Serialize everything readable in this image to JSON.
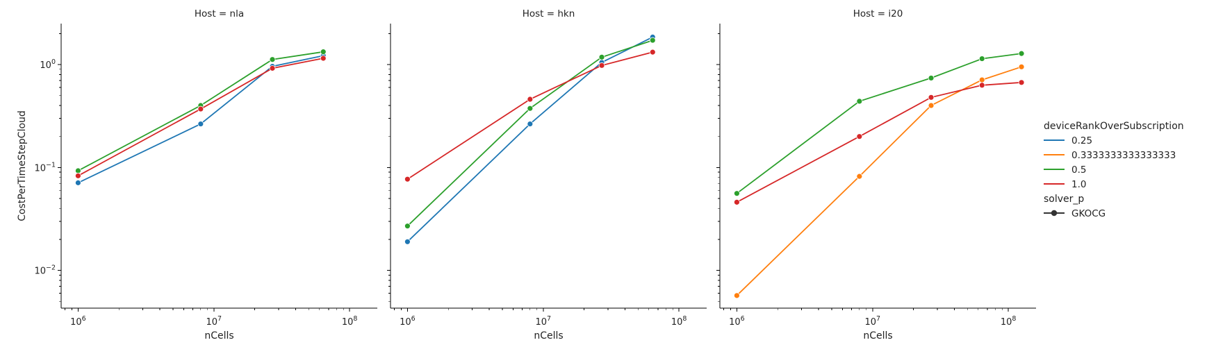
{
  "chart_data": {
    "type": "line",
    "facet_label": "Host",
    "xlabel": "nCells",
    "ylabel": "CostPerTimeStepCloud",
    "xscale": "log",
    "yscale": "log",
    "xlim": [
      750000,
      160000000
    ],
    "ylim": [
      0.0043,
      2.5
    ],
    "xticks": [
      "10^6",
      "10^7",
      "10^8"
    ],
    "yticks": [
      "10^-2",
      "10^-1",
      "10^0"
    ],
    "legend": {
      "placement": "right",
      "hue_title": "deviceRankOverSubscription",
      "style_title": "solver_p",
      "hue_entries": [
        {
          "label": "0.25",
          "color": "#1f77b4"
        },
        {
          "label": "0.3333333333333333",
          "color": "#ff7f0e"
        },
        {
          "label": "0.5",
          "color": "#2ca02c"
        },
        {
          "label": "1.0",
          "color": "#d62728"
        }
      ],
      "style_entries": [
        {
          "label": "GKOCG",
          "marker": "circle",
          "color": "#333333"
        }
      ]
    },
    "panels": [
      {
        "title": "Host = nla",
        "series": [
          {
            "name": "0.25",
            "color": "#1f77b4",
            "x": [
              1000000,
              8000000,
              27000000,
              64000000
            ],
            "y": [
              0.071,
              0.265,
              0.96,
              1.22
            ]
          },
          {
            "name": "0.5",
            "color": "#2ca02c",
            "x": [
              1000000,
              8000000,
              27000000,
              64000000
            ],
            "y": [
              0.093,
              0.4,
              1.12,
              1.33
            ]
          },
          {
            "name": "1.0",
            "color": "#d62728",
            "x": [
              1000000,
              8000000,
              27000000,
              64000000
            ],
            "y": [
              0.083,
              0.37,
              0.92,
              1.15
            ]
          }
        ]
      },
      {
        "title": "Host = hkn",
        "series": [
          {
            "name": "0.25",
            "color": "#1f77b4",
            "x": [
              1000000,
              8000000,
              27000000,
              64000000
            ],
            "y": [
              0.019,
              0.265,
              1.05,
              1.85
            ]
          },
          {
            "name": "0.5",
            "color": "#2ca02c",
            "x": [
              1000000,
              8000000,
              27000000,
              64000000
            ],
            "y": [
              0.027,
              0.375,
              1.18,
              1.72
            ]
          },
          {
            "name": "1.0",
            "color": "#d62728",
            "x": [
              1000000,
              8000000,
              27000000,
              64000000
            ],
            "y": [
              0.077,
              0.46,
              0.98,
              1.32
            ]
          }
        ]
      },
      {
        "title": "Host = i20",
        "series": [
          {
            "name": "0.3333333333333333",
            "color": "#ff7f0e",
            "x": [
              1000000,
              8000000,
              27000000,
              64000000,
              125000000
            ],
            "y": [
              0.0057,
              0.082,
              0.4,
              0.71,
              0.95
            ]
          },
          {
            "name": "0.5",
            "color": "#2ca02c",
            "x": [
              1000000,
              8000000,
              27000000,
              64000000,
              125000000
            ],
            "y": [
              0.056,
              0.44,
              0.74,
              1.14,
              1.28
            ]
          },
          {
            "name": "1.0",
            "color": "#d62728",
            "x": [
              1000000,
              8000000,
              27000000,
              64000000,
              125000000
            ],
            "y": [
              0.046,
              0.2,
              0.48,
              0.63,
              0.67
            ]
          }
        ]
      }
    ]
  }
}
